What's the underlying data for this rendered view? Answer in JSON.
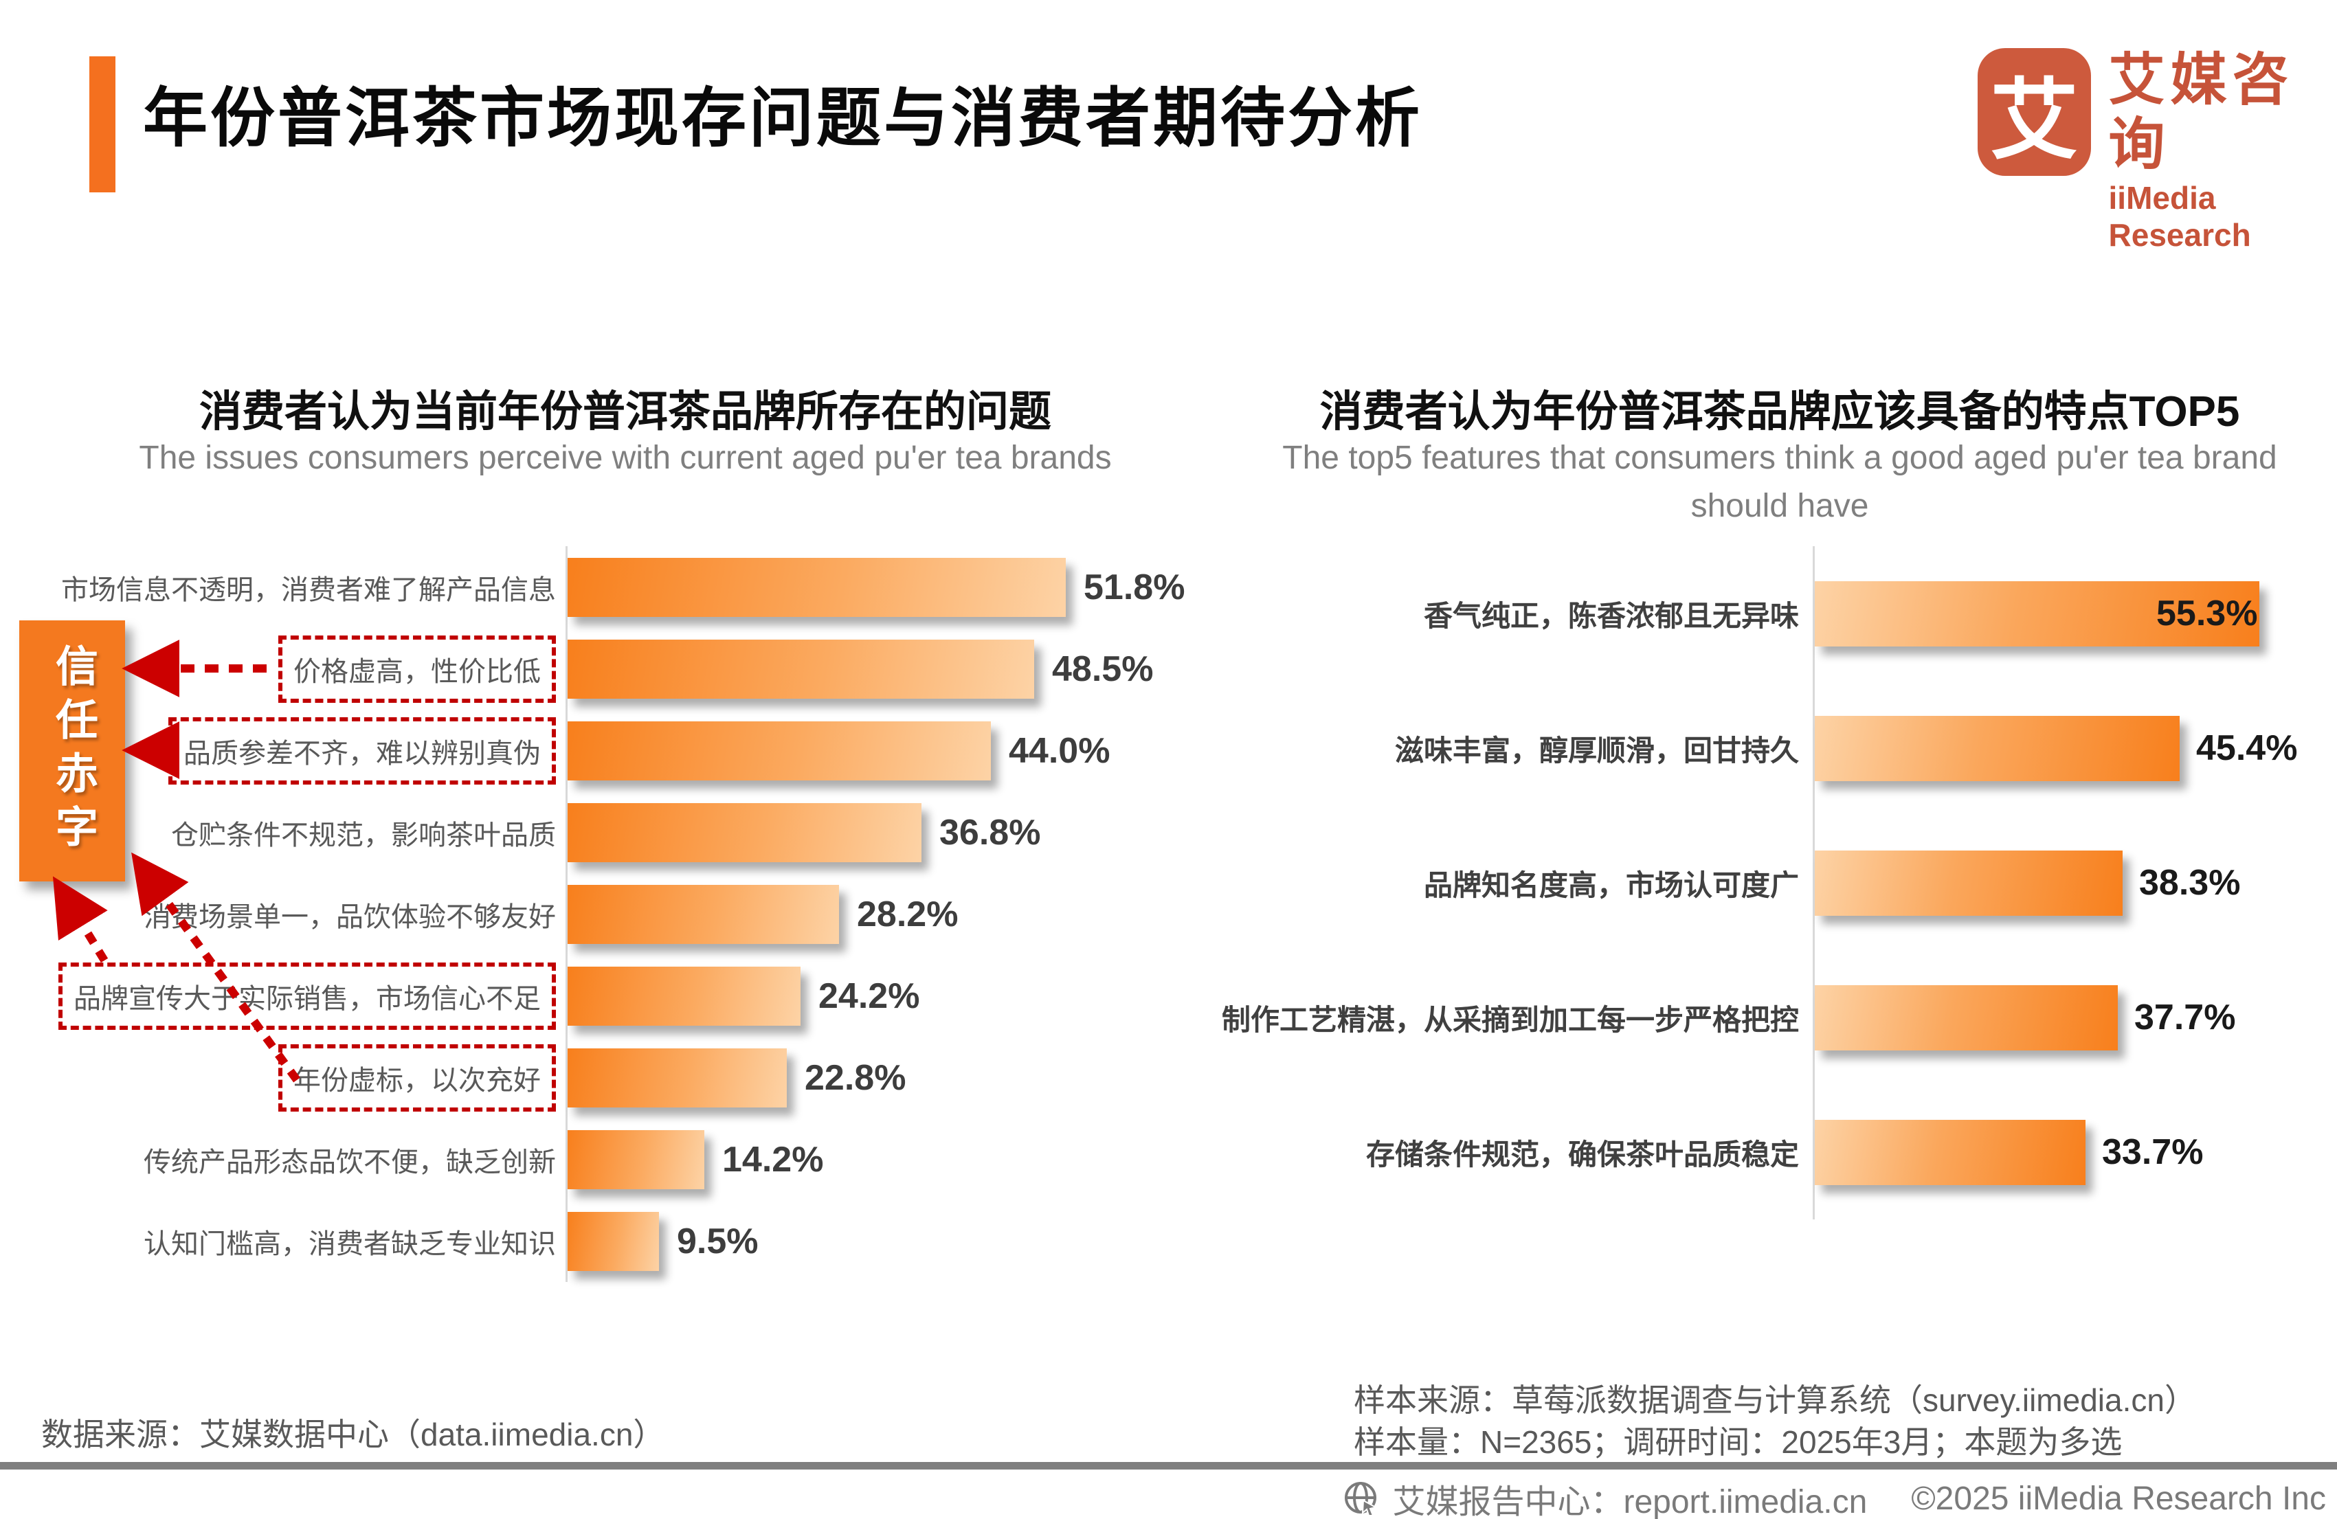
{
  "header": {
    "title": "年份普洱茶市场现存问题与消费者期待分析"
  },
  "logo": {
    "glyph": "艾",
    "cn": "艾媒咨询",
    "en": "iiMedia Research"
  },
  "colors": {
    "accent_orange": "#F4701F",
    "bar_dark_orange": "#F87F1C",
    "bar_light_orange": "#FDD3A6",
    "dashed_red": "#C00000",
    "logo_red": "#C65339",
    "label_gray": "#595959",
    "subtitle_gray": "#7F7F7F"
  },
  "left_chart": {
    "title": "消费者认为当前年份普洱茶品牌所存在的问题",
    "subtitle": "The issues consumers perceive with current aged pu'er tea brands",
    "items": [
      {
        "label": "市场信息不透明，消费者难了解产品信息",
        "value": 51.8,
        "boxed": false
      },
      {
        "label": "价格虚高，性价比低",
        "value": 48.5,
        "boxed": true
      },
      {
        "label": "品质参差不齐，难以辨别真伪",
        "value": 44.0,
        "boxed": true
      },
      {
        "label": "仓贮条件不规范，影响茶叶品质",
        "value": 36.8,
        "boxed": false
      },
      {
        "label": "消费场景单一，品饮体验不够友好",
        "value": 28.2,
        "boxed": false
      },
      {
        "label": "品牌宣传大于实际销售，市场信心不足",
        "value": 24.2,
        "boxed": true
      },
      {
        "label": "年份虚标，以次充好",
        "value": 22.8,
        "boxed": true
      },
      {
        "label": "传统产品形态品饮不便，缺乏创新",
        "value": 14.2,
        "boxed": false
      },
      {
        "label": "认知门槛高，消费者缺乏专业知识",
        "value": 9.5,
        "boxed": false
      }
    ]
  },
  "annotation": {
    "label": "信任赤字"
  },
  "right_chart": {
    "title": "消费者认为年份普洱茶品牌应该具备的特点TOP5",
    "subtitle": "The top5 features that consumers think a good aged pu'er tea brand should have",
    "items": [
      {
        "label": "香气纯正，陈香浓郁且无异味",
        "value": 55.3
      },
      {
        "label": "滋味丰富，醇厚顺滑，回甘持久",
        "value": 45.4
      },
      {
        "label": "品牌知名度高，市场认可度广",
        "value": 38.3
      },
      {
        "label": "制作工艺精湛，从采摘到加工每一步严格把控",
        "value": 37.7
      },
      {
        "label": "存储条件规范，确保茶叶品质稳定",
        "value": 33.7
      }
    ]
  },
  "sources": {
    "left": "数据来源：艾媒数据中心（data.iimedia.cn）",
    "right_line1": "样本来源：草莓派数据调查与计算系统（survey.iimedia.cn）",
    "right_line2": "样本量：N=2365；调研时间：2025年3月；本题为多选"
  },
  "footer": {
    "report_center": "艾媒报告中心：report.iimedia.cn",
    "copyright": "©2025  iiMedia Research  Inc"
  },
  "chart_data": [
    {
      "type": "bar",
      "orientation": "horizontal",
      "title": "消费者认为当前年份普洱茶品牌所存在的问题",
      "subtitle": "The issues consumers perceive with current aged pu'er tea brands",
      "categories": [
        "市场信息不透明，消费者难了解产品信息",
        "价格虚高，性价比低",
        "品质参差不齐，难以辨别真伪",
        "仓贮条件不规范，影响茶叶品质",
        "消费场景单一，品饮体验不够友好",
        "品牌宣传大于实际销售，市场信心不足",
        "年份虚标，以次充好",
        "传统产品形态品饮不便，缺乏创新",
        "认知门槛高，消费者缺乏专业知识"
      ],
      "values": [
        51.8,
        48.5,
        44.0,
        36.8,
        28.2,
        24.2,
        22.8,
        14.2,
        9.5
      ],
      "unit": "%",
      "xlim": [
        0,
        60
      ],
      "grid": false,
      "data_labels": true,
      "highlighted_categories": [
        "价格虚高，性价比低",
        "品质参差不齐，难以辨别真伪",
        "品牌宣传大于实际销售，市场信心不足",
        "年份虚标，以次充好"
      ],
      "annotation": "信任赤字"
    },
    {
      "type": "bar",
      "orientation": "horizontal",
      "title": "消费者认为年份普洱茶品牌应该具备的特点TOP5",
      "subtitle": "The top5 features that consumers think a good aged pu'er tea brand should have",
      "categories": [
        "香气纯正，陈香浓郁且无异味",
        "滋味丰富，醇厚顺滑，回甘持久",
        "品牌知名度高，市场认可度广",
        "制作工艺精湛，从采摘到加工每一步严格把控",
        "存储条件规范，确保茶叶品质稳定"
      ],
      "values": [
        55.3,
        45.4,
        38.3,
        37.7,
        33.7
      ],
      "unit": "%",
      "xlim": [
        0,
        60
      ],
      "grid": false,
      "data_labels": true
    }
  ]
}
